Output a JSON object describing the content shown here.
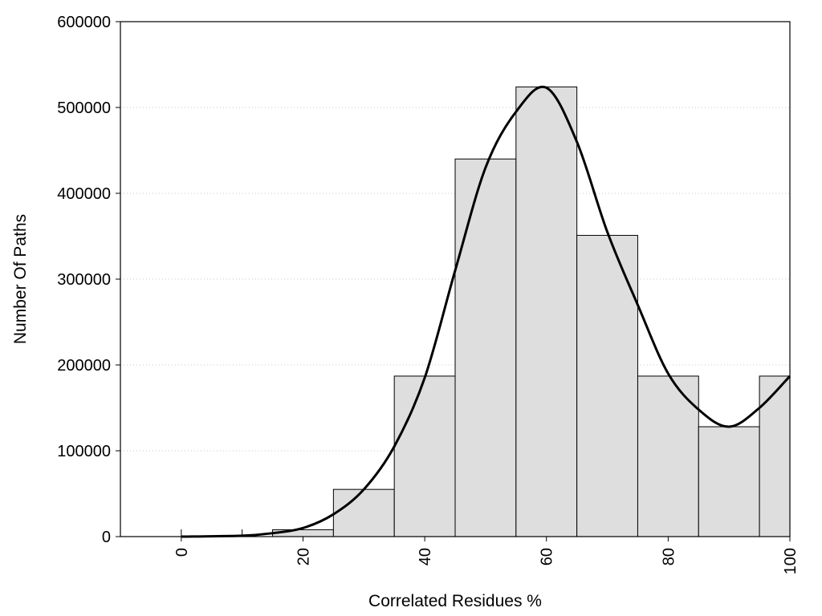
{
  "chart_data": {
    "type": "bar",
    "title": "",
    "xlabel": "Correlated Residues %",
    "ylabel": "Number Of Paths",
    "xlim": [
      -10,
      100
    ],
    "ylim": [
      0,
      600000
    ],
    "x_ticks": [
      0,
      20,
      40,
      60,
      80,
      100
    ],
    "x_tick_labels": [
      "0",
      "20",
      "40",
      "60",
      "80",
      "100"
    ],
    "y_ticks": [
      0,
      100000,
      200000,
      300000,
      400000,
      500000,
      600000
    ],
    "y_tick_labels": [
      "0",
      "100000",
      "200000",
      "300000",
      "400000",
      "500000",
      "600000"
    ],
    "grid": "horizontal dotted",
    "bar_width": 10,
    "bars": [
      {
        "x": 0,
        "value": 0
      },
      {
        "x": 10,
        "value": 0
      },
      {
        "x": 20,
        "value": 8000
      },
      {
        "x": 30,
        "value": 55000
      },
      {
        "x": 40,
        "value": 187000
      },
      {
        "x": 50,
        "value": 440000
      },
      {
        "x": 60,
        "value": 524000
      },
      {
        "x": 70,
        "value": 351000
      },
      {
        "x": 80,
        "value": 187000
      },
      {
        "x": 90,
        "value": 128000
      },
      {
        "x": 100,
        "value": 187000
      }
    ],
    "curve": {
      "type": "line",
      "x": [
        0,
        10,
        15,
        20,
        25,
        30,
        35,
        40,
        45,
        50,
        55,
        60,
        65,
        70,
        75,
        80,
        85,
        90,
        95,
        100
      ],
      "y": [
        0,
        1000,
        4000,
        10000,
        26000,
        55000,
        105000,
        185000,
        310000,
        430000,
        495000,
        523000,
        460000,
        355000,
        270000,
        190000,
        148000,
        128000,
        150000,
        187000
      ]
    },
    "colors": {
      "bar_fill": "#dedede",
      "bar_stroke": "#000000",
      "curve": "#000000",
      "grid": "#c8c8c8"
    }
  }
}
